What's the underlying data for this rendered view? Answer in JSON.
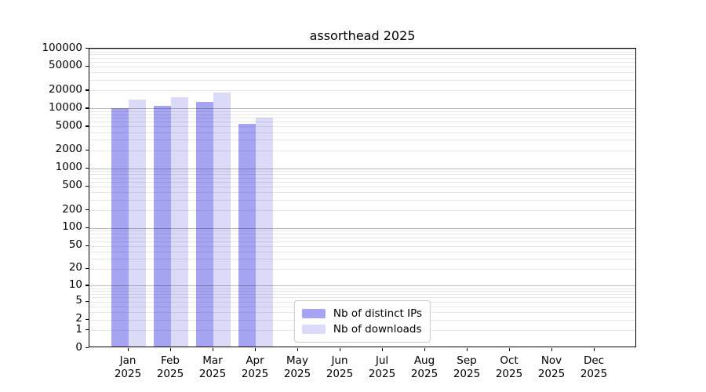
{
  "title": "assorthead 2025",
  "chart_data": {
    "type": "bar",
    "title": "assorthead 2025",
    "scale": "log10(1+x)",
    "ylim": [
      0,
      100000
    ],
    "grid": true,
    "legend_position": "lower center",
    "categories": [
      "Jan",
      "Feb",
      "Mar",
      "Apr",
      "May",
      "Jun",
      "Jul",
      "Aug",
      "Sep",
      "Oct",
      "Nov",
      "Dec"
    ],
    "year": "2025",
    "y_ticks": [
      0,
      1,
      2,
      5,
      10,
      20,
      50,
      100,
      200,
      500,
      1000,
      2000,
      5000,
      10000,
      20000,
      50000,
      100000
    ],
    "series": [
      {
        "name": "Nb of distinct IPs",
        "color": "#a5a5f2",
        "values": [
          9500,
          10400,
          12100,
          5300,
          null,
          null,
          null,
          null,
          null,
          null,
          null,
          null
        ]
      },
      {
        "name": "Nb of downloads",
        "color": "#dbdbf9",
        "values": [
          13200,
          14600,
          17400,
          6700,
          null,
          null,
          null,
          null,
          null,
          null,
          null,
          null
        ]
      }
    ]
  },
  "colors": {
    "major_grid": "#b9b9b9",
    "minor_grid": "#e8e8e8",
    "spine": "#000000",
    "background": "#ffffff"
  }
}
